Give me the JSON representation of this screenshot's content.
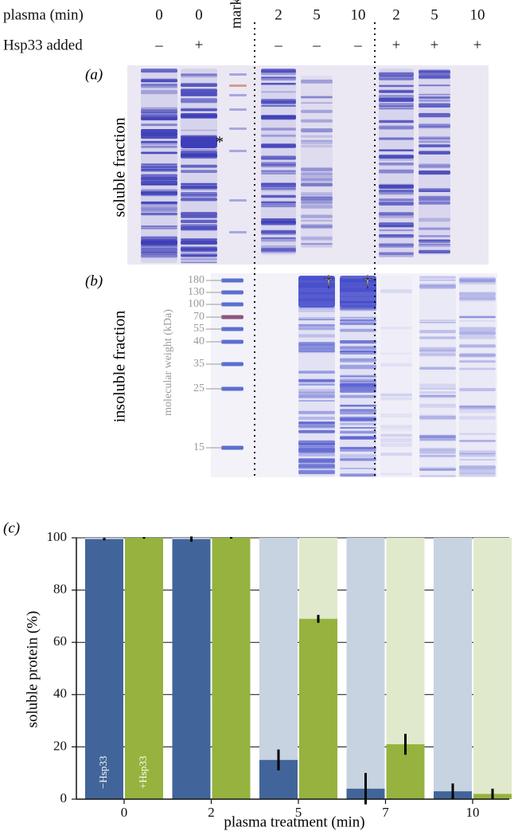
{
  "gel": {
    "plasma_label": "plasma (min)",
    "plasma": [
      "0",
      "0",
      "2",
      "5",
      "10",
      "2",
      "5",
      "10"
    ],
    "marker": "marker",
    "hsp33_label": "Hsp33 added",
    "hsp33": [
      "–",
      "+",
      "–",
      "–",
      "–",
      "+",
      "+",
      "+"
    ],
    "panel_a": "(a)",
    "panel_a_label": "soluble fraction",
    "asterisk": "*",
    "panel_b": "(b)",
    "panel_b_label": "insoluble fraction",
    "mw_axis_label": "molecular weight (kDa)",
    "mw_markers": [
      "180",
      "130",
      "100",
      "70",
      "55",
      "40",
      "35",
      "25",
      "15"
    ],
    "daggers": [
      "†",
      "†"
    ]
  },
  "chart_data": {
    "type": "bar",
    "panel_label": "(c)",
    "x_label": "plasma treatment (min)",
    "y_label": "soluble protein (%)",
    "categories": [
      "0",
      "2",
      "5",
      "7",
      "10"
    ],
    "series": [
      {
        "name": "−Hsp33",
        "color": "#41659a",
        "background": "#c7d3e1",
        "values": [
          99.5,
          99.5,
          15,
          4,
          3
        ],
        "errors": [
          0.5,
          1,
          4,
          6,
          3
        ]
      },
      {
        "name": "+Hsp33",
        "color": "#95b33e",
        "background": "#e1e9cc",
        "values": [
          100,
          100,
          69,
          21,
          2
        ],
        "errors": [
          0.3,
          0.3,
          1.5,
          4,
          2
        ]
      }
    ],
    "ylim": [
      0,
      100
    ],
    "yticks": [
      0,
      20,
      40,
      60,
      80,
      100
    ],
    "grid": true
  }
}
